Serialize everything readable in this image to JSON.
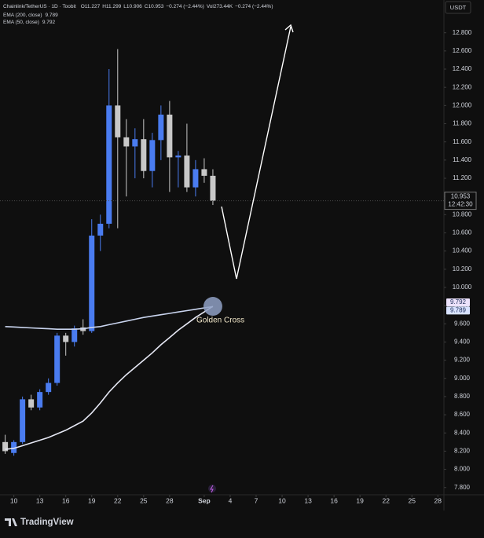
{
  "chart_data": {
    "type": "candlestick",
    "title": "Chainlink/TetherUS · 1D · Toobit",
    "ohlc_text": [
      "O11.227",
      "H11.299",
      "L10.906",
      "C10.953"
    ],
    "change": "−0.274 (−2.44%)",
    "volume": "Vol273.44K",
    "volume_change": "−0.274 (−2.44%)",
    "currency": "USDT",
    "countdown": "12:42:30",
    "annotation": "Golden Cross",
    "brand": "TradingView",
    "up_color": "#4a7cf0",
    "down_color": "#c8c8c8",
    "candles": {
      "x": [
        9,
        10,
        11,
        12,
        13,
        14,
        15,
        16,
        17,
        18,
        19,
        20,
        21,
        22,
        23,
        24,
        25,
        26,
        27,
        28,
        29,
        30,
        31,
        32,
        33
      ],
      "open": [
        8.3,
        8.18,
        8.3,
        8.77,
        8.68,
        8.85,
        8.95,
        9.47,
        9.4,
        9.56,
        9.52,
        10.57,
        10.7,
        12.0,
        11.65,
        11.55,
        11.63,
        11.28,
        11.62,
        11.9,
        11.43,
        11.45,
        11.1,
        11.3,
        11.227
      ],
      "high": [
        8.38,
        8.32,
        8.8,
        8.82,
        8.88,
        9.0,
        9.5,
        9.5,
        9.58,
        9.65,
        10.75,
        10.8,
        12.4,
        12.62,
        11.85,
        11.75,
        11.85,
        11.7,
        12.0,
        12.05,
        11.5,
        11.8,
        11.4,
        11.42,
        11.299
      ],
      "low": [
        8.17,
        8.15,
        8.28,
        8.65,
        8.65,
        8.82,
        8.92,
        9.25,
        9.35,
        9.48,
        9.5,
        10.4,
        10.65,
        10.65,
        11.0,
        11.2,
        11.2,
        11.1,
        11.4,
        11.05,
        11.1,
        11.05,
        11.0,
        11.15,
        10.906
      ],
      "close": [
        8.2,
        8.3,
        8.77,
        8.68,
        8.85,
        8.95,
        9.47,
        9.4,
        9.55,
        9.52,
        10.57,
        10.7,
        12.0,
        11.65,
        11.55,
        11.63,
        11.28,
        11.62,
        11.9,
        11.43,
        11.45,
        11.1,
        11.3,
        11.227,
        10.953
      ]
    },
    "series": [
      {
        "name": "EMA (200, close)",
        "color": "#c9d4ee",
        "x": [
          9,
          10,
          11,
          12,
          13,
          14,
          15,
          16,
          17,
          18,
          19,
          20,
          21,
          22,
          23,
          24,
          25,
          26,
          27,
          28,
          29,
          30,
          31,
          32,
          33
        ],
        "values": [
          9.57,
          9.565,
          9.56,
          9.555,
          9.55,
          9.545,
          9.54,
          9.54,
          9.54,
          9.545,
          9.56,
          9.57,
          9.59,
          9.61,
          9.63,
          9.65,
          9.67,
          9.685,
          9.7,
          9.715,
          9.73,
          9.745,
          9.76,
          9.775,
          9.789
        ]
      },
      {
        "name": "EMA (50, close)",
        "color": "#e6e8f4",
        "x": [
          9,
          10,
          11,
          12,
          13,
          14,
          15,
          16,
          17,
          18,
          19,
          20,
          21,
          22,
          23,
          24,
          25,
          26,
          27,
          28,
          29,
          30,
          31,
          32,
          33
        ],
        "values": [
          8.22,
          8.23,
          8.26,
          8.29,
          8.32,
          8.35,
          8.39,
          8.43,
          8.48,
          8.53,
          8.62,
          8.73,
          8.85,
          8.95,
          9.04,
          9.12,
          9.2,
          9.28,
          9.37,
          9.45,
          9.53,
          9.6,
          9.67,
          9.73,
          9.792
        ]
      }
    ],
    "xlim": [
      8.4,
      59.7
    ],
    "xticks": [
      10,
      13,
      16,
      19,
      22,
      25,
      28,
      {
        "value": 32,
        "label": "Sep"
      },
      {
        "value": 35,
        "label": "4"
      },
      {
        "value": 38,
        "label": "7"
      },
      {
        "value": 41,
        "label": "10"
      },
      {
        "value": 44,
        "label": "13"
      },
      {
        "value": 47,
        "label": "16"
      },
      {
        "value": 50,
        "label": "19"
      },
      {
        "value": 53,
        "label": "22"
      },
      {
        "value": 56,
        "label": "25"
      },
      {
        "value": 59,
        "label": "28"
      }
    ],
    "ylim": [
      7.72,
      13.16
    ],
    "yticks": [
      {
        "value": 7.8,
        "label": "7.800"
      },
      {
        "value": 8.0,
        "label": "8.000"
      },
      {
        "value": 8.2,
        "label": "8.200"
      },
      {
        "value": 8.4,
        "label": "8.400"
      },
      {
        "value": 8.6,
        "label": "8.600"
      },
      {
        "value": 8.8,
        "label": "8.800"
      },
      {
        "value": 9.0,
        "label": "9.000"
      },
      {
        "value": 9.2,
        "label": "9.200"
      },
      {
        "value": 9.4,
        "label": "9.400"
      },
      {
        "value": 9.6,
        "label": "9.600"
      },
      {
        "value": 9.8,
        "label": "9.800"
      },
      {
        "value": 10.0,
        "label": "10.000"
      },
      {
        "value": 10.2,
        "label": "10.200"
      },
      {
        "value": 10.4,
        "label": "10.400"
      },
      {
        "value": 10.6,
        "label": "10.600"
      },
      {
        "value": 10.8,
        "label": "10.800"
      },
      {
        "value": 11.0,
        "label": "11.000"
      },
      {
        "value": 11.2,
        "label": "11.200"
      },
      {
        "value": 11.4,
        "label": "11.400"
      },
      {
        "value": 11.6,
        "label": "11.600"
      },
      {
        "value": 11.8,
        "label": "11.800"
      },
      {
        "value": 12.0,
        "label": "12.000"
      },
      {
        "value": 12.2,
        "label": "12.200"
      },
      {
        "value": 12.4,
        "label": "12.400"
      },
      {
        "value": 12.6,
        "label": "12.600"
      },
      {
        "value": 12.8,
        "label": "12.800"
      }
    ],
    "grid": false
  }
}
